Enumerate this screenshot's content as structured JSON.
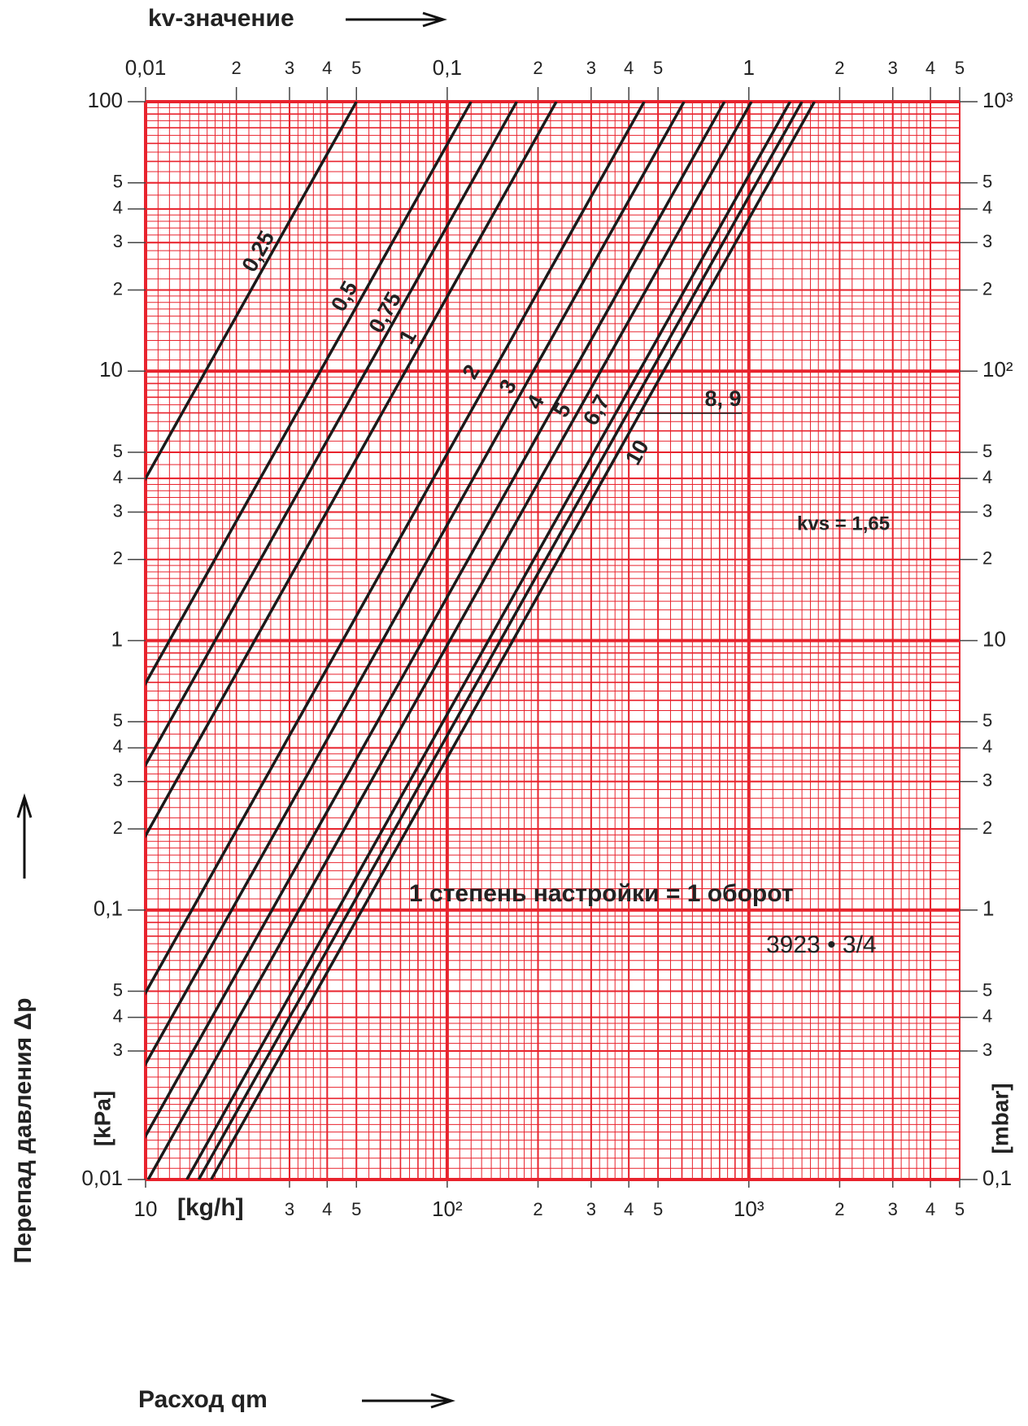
{
  "chart_data": {
    "type": "line",
    "x2label": "kv-значение",
    "ylabel": "Перепад давления  Δp",
    "xlabel": "Расход qm",
    "x_unit": "[kg/h]",
    "y_unit": "[kPa]",
    "y2_unit": "[mbar]",
    "annotations": [
      "1 степень настройки = 1 оборот",
      "3923 • 3/4",
      "kvs = 1,65"
    ],
    "log_scale": true,
    "grid": true,
    "color": "#1a1a1a",
    "grid_color": "#e8232d",
    "xlim": [
      10,
      5000
    ],
    "ylim": [
      0.01,
      100
    ],
    "y2lim": [
      0.1,
      1000
    ],
    "x2lim": [
      0.01,
      5
    ],
    "xticks": [
      10,
      {
        "value": 30,
        "label": "3"
      },
      {
        "value": 40,
        "label": "4"
      },
      {
        "value": 50,
        "label": "5"
      },
      {
        "value": 100,
        "label": "10²"
      },
      {
        "value": 200,
        "label": "2"
      },
      {
        "value": 300,
        "label": "3"
      },
      {
        "value": 400,
        "label": "4"
      },
      {
        "value": 500,
        "label": "5"
      },
      {
        "value": 1000,
        "label": "10³"
      },
      {
        "value": 2000,
        "label": "2"
      },
      {
        "value": 3000,
        "label": "3"
      },
      {
        "value": 4000,
        "label": "4"
      },
      {
        "value": 5000,
        "label": "5"
      }
    ],
    "x2ticks": [
      {
        "value": 0.01,
        "label": "0,01"
      },
      {
        "value": 0.02,
        "label": "2"
      },
      {
        "value": 0.03,
        "label": "3"
      },
      {
        "value": 0.04,
        "label": "4"
      },
      {
        "value": 0.05,
        "label": "5"
      },
      {
        "value": 0.1,
        "label": "0,1"
      },
      {
        "value": 0.2,
        "label": "2"
      },
      {
        "value": 0.3,
        "label": "3"
      },
      {
        "value": 0.4,
        "label": "4"
      },
      {
        "value": 0.5,
        "label": "5"
      },
      1,
      2,
      3,
      4,
      5
    ],
    "yticks": [
      100,
      {
        "value": 50,
        "label": "5"
      },
      {
        "value": 40,
        "label": "4"
      },
      {
        "value": 30,
        "label": "3"
      },
      {
        "value": 20,
        "label": "2"
      },
      10,
      5,
      4,
      3,
      2,
      1,
      {
        "value": 0.5,
        "label": "5"
      },
      {
        "value": 0.4,
        "label": "4"
      },
      {
        "value": 0.3,
        "label": "3"
      },
      {
        "value": 0.2,
        "label": "2"
      },
      {
        "value": 0.1,
        "label": "0,1"
      },
      {
        "value": 0.05,
        "label": "5"
      },
      {
        "value": 0.04,
        "label": "4"
      },
      {
        "value": 0.03,
        "label": "3"
      },
      {
        "value": 0.01,
        "label": "0,01"
      }
    ],
    "y2ticks": [
      {
        "value": 1000,
        "label": "10³"
      },
      {
        "value": 500,
        "label": "5"
      },
      {
        "value": 400,
        "label": "4"
      },
      {
        "value": 300,
        "label": "3"
      },
      {
        "value": 200,
        "label": "2"
      },
      {
        "value": 100,
        "label": "10²"
      },
      {
        "value": 50,
        "label": "5"
      },
      {
        "value": 40,
        "label": "4"
      },
      {
        "value": 30,
        "label": "3"
      },
      {
        "value": 20,
        "label": "2"
      },
      10,
      5,
      4,
      3,
      2,
      1,
      {
        "value": 0.5,
        "label": "5"
      },
      {
        "value": 0.4,
        "label": "4"
      },
      {
        "value": 0.3,
        "label": "3"
      },
      {
        "value": 0.1,
        "label": "0,1"
      }
    ],
    "series": [
      {
        "name": "0,25",
        "kv": 0.05
      },
      {
        "name": "0,5",
        "kv": 0.12
      },
      {
        "name": "0,75",
        "kv": 0.17
      },
      {
        "name": "1",
        "kv": 0.23
      },
      {
        "name": "2",
        "kv": 0.45
      },
      {
        "name": "3",
        "kv": 0.61
      },
      {
        "name": "4",
        "kv": 0.83
      },
      {
        "name": "5",
        "kv": 1.02
      },
      {
        "name": "6,7",
        "kv": 1.37
      },
      {
        "name": "8, 9",
        "kv": 1.5
      },
      {
        "name": "10",
        "kv": 1.65
      }
    ]
  }
}
